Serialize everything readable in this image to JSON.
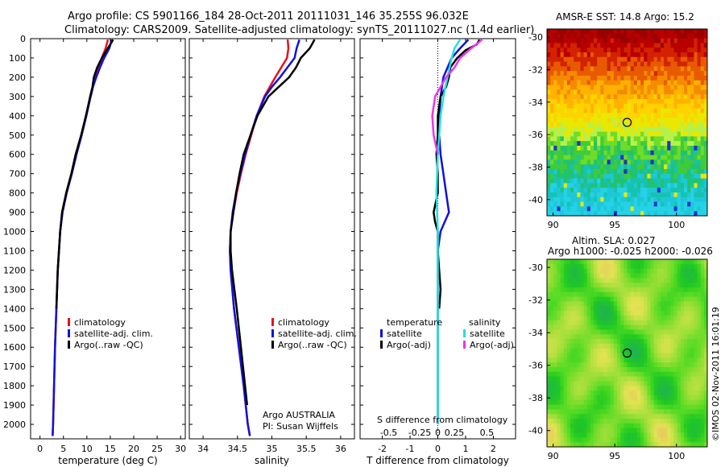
{
  "header": {
    "line1": "Argo profile: CS 5901166_184 28-Oct-2011 20111031_146 35.255S 96.032E",
    "line2": "Climatology: CARS2009. Satellite-adjusted climatology: synTS_20111027.nc (1.4d earlier)"
  },
  "sst_title": "AMSR-E SST: 14.8 Argo: 15.2",
  "sla_title1": "Altim. SLA: 0.027",
  "sla_title2": "Argo h1000: -0.025 h2000: -0.026",
  "watermark": "©IMOS 02-Nov-2011 16:01:19",
  "colors": {
    "climatology": "#e8111a",
    "satellite": "#1111dd",
    "argo": "#000000",
    "sal_satellite": "#22e0e0",
    "sal_argo": "#ee33ee"
  },
  "chart_data": [
    {
      "type": "line",
      "xlabel": "temperature (deg C)",
      "xlim": [
        -2,
        31
      ],
      "xticks": [
        0,
        5,
        10,
        15,
        20,
        25,
        30
      ],
      "ylim": [
        2075,
        0
      ],
      "yticks": [
        0,
        100,
        200,
        300,
        400,
        500,
        600,
        700,
        800,
        900,
        1000,
        1100,
        1200,
        1300,
        1400,
        1500,
        1600,
        1700,
        1800,
        1900,
        2000
      ],
      "legend": [
        "climatology",
        "satellite-adj. clim.",
        "Argo(..raw -QC)"
      ],
      "legend_position": "lower-center",
      "series": [
        {
          "name": "climatology",
          "color": "#e8111a",
          "y": [
            5,
            50,
            100,
            150,
            200,
            250,
            300,
            400,
            500,
            600,
            700,
            800,
            900,
            1000,
            1200,
            1400,
            1600,
            1800,
            2000,
            2060
          ],
          "x": [
            14.5,
            14.0,
            13.2,
            12.5,
            11.9,
            11.3,
            10.8,
            9.8,
            8.8,
            7.7,
            6.7,
            5.6,
            4.8,
            4.3,
            3.8,
            3.5,
            3.2,
            3.0,
            2.8,
            2.7
          ]
        },
        {
          "name": "satellite-adj. clim.",
          "color": "#1111dd",
          "y": [
            5,
            50,
            100,
            150,
            200,
            250,
            300,
            400,
            500,
            600,
            700,
            800,
            900,
            1000,
            1200,
            1400,
            1600,
            1800,
            2000,
            2060
          ],
          "x": [
            15.3,
            14.8,
            13.7,
            12.8,
            12.0,
            11.3,
            10.8,
            9.9,
            8.9,
            7.8,
            6.8,
            5.7,
            4.8,
            4.3,
            3.8,
            3.5,
            3.2,
            3.0,
            2.8,
            2.7
          ]
        },
        {
          "name": "Argo(..raw -QC)",
          "color": "#000000",
          "y": [
            5,
            30,
            60,
            100,
            150,
            200,
            250,
            300,
            400,
            500,
            600,
            700,
            800,
            900,
            1000,
            1200,
            1400
          ],
          "x": [
            15.6,
            15.0,
            14.2,
            13.2,
            12.2,
            11.5,
            11.2,
            10.7,
            9.8,
            8.8,
            7.6,
            6.7,
            5.6,
            4.7,
            4.3,
            3.8,
            3.5
          ]
        }
      ]
    },
    {
      "type": "line",
      "xlabel": "salinity",
      "xlim": [
        33.8,
        36.2
      ],
      "xticks": [
        34,
        34.5,
        35,
        35.5,
        36
      ],
      "ylim": [
        2075,
        0
      ],
      "legend": [
        "climatology",
        "satellite-adj. clim.",
        "Argo(..raw -QC)"
      ],
      "legend_position": "lower-right",
      "annotation": [
        "Argo AUSTRALIA",
        "PI: Susan Wijffels"
      ],
      "series": [
        {
          "name": "climatology",
          "color": "#e8111a",
          "y": [
            5,
            50,
            100,
            200,
            250,
            300,
            400,
            500,
            600,
            700,
            800,
            900,
            1000,
            1100,
            1200,
            1400,
            1600,
            1800,
            2000,
            2060
          ],
          "x": [
            35.23,
            35.24,
            35.22,
            35.05,
            34.97,
            34.89,
            34.78,
            34.7,
            34.62,
            34.55,
            34.49,
            34.44,
            34.4,
            34.39,
            34.4,
            34.45,
            34.52,
            34.59,
            34.65,
            34.68
          ]
        },
        {
          "name": "satellite-adj. clim.",
          "color": "#1111dd",
          "y": [
            5,
            50,
            100,
            200,
            250,
            300,
            400,
            500,
            600,
            700,
            800,
            900,
            1000,
            1100,
            1200,
            1400,
            1600,
            1800,
            2000,
            2060
          ],
          "x": [
            35.4,
            35.36,
            35.33,
            35.12,
            35.0,
            34.9,
            34.78,
            34.69,
            34.61,
            34.54,
            34.48,
            34.43,
            34.4,
            34.39,
            34.4,
            34.45,
            34.52,
            34.59,
            34.65,
            34.68
          ]
        },
        {
          "name": "Argo(..raw -QC)",
          "color": "#000000",
          "y": [
            5,
            50,
            100,
            150,
            200,
            250,
            300,
            400,
            500,
            600,
            700,
            800,
            900,
            1000,
            1100,
            1200,
            1400,
            1600,
            1800,
            1900
          ],
          "x": [
            35.62,
            35.55,
            35.42,
            35.35,
            35.25,
            35.1,
            34.95,
            34.79,
            34.69,
            34.59,
            34.53,
            34.48,
            34.44,
            34.4,
            34.4,
            34.42,
            34.49,
            34.55,
            34.61,
            34.64
          ]
        }
      ]
    },
    {
      "type": "line",
      "xlabel": "T difference from climatology",
      "x2label": "S difference from climatology",
      "xlim": [
        -2.8,
        2.8
      ],
      "xticks": [
        -2,
        -1,
        0,
        1,
        2
      ],
      "x2ticks": [
        "-0.5",
        "-0.25",
        "0",
        "0.25",
        "0.5"
      ],
      "ylim": [
        2075,
        0
      ],
      "legend_temperature_title": "temperature",
      "legend_salinity_title": "salinity",
      "legend": [
        "satellite",
        "Argo(-adj)",
        "satellite",
        "Argo(-adj)"
      ],
      "series": [
        {
          "name": "temperature satellite",
          "color": "#1111dd",
          "y": [
            5,
            50,
            100,
            150,
            200,
            300,
            400,
            500,
            600,
            700,
            800,
            900,
            1000,
            1100,
            1200,
            1400,
            1600,
            1800,
            2000
          ],
          "x": [
            1.1,
            0.8,
            0.5,
            0.35,
            0.2,
            0.1,
            0.05,
            0.05,
            0.1,
            0.2,
            0.3,
            0.4,
            0.1,
            0.0,
            0.0,
            0.0,
            0.0,
            0.0,
            0.0
          ]
        },
        {
          "name": "temperature Argo(-adj)",
          "color": "#000000",
          "y": [
            5,
            30,
            60,
            100,
            150,
            200,
            250,
            300,
            400,
            500,
            600,
            700,
            800,
            900,
            950,
            1000,
            1100,
            1200,
            1300,
            1400
          ],
          "x": [
            1.5,
            1.4,
            1.0,
            0.7,
            0.45,
            0.4,
            0.3,
            0.1,
            0.0,
            0.0,
            -0.05,
            0.0,
            0.0,
            -0.15,
            -0.1,
            0.0,
            0.0,
            0.05,
            0.1,
            0.05
          ]
        },
        {
          "name": "salinity satellite",
          "color": "#22e0e0",
          "y": [
            5,
            50,
            100,
            200,
            300,
            400,
            600,
            800,
            1000,
            1200,
            1400,
            1600,
            1800,
            2000
          ],
          "x": [
            0.8,
            0.6,
            0.5,
            0.35,
            0.2,
            0.1,
            0.0,
            -0.05,
            0.0,
            0.0,
            0.0,
            0.0,
            0.0,
            0.0
          ]
        },
        {
          "name": "salinity Argo(-adj)",
          "color": "#ee33ee",
          "y": [
            5,
            50,
            100,
            150,
            200,
            300,
            400,
            500,
            600
          ],
          "x": [
            1.6,
            1.2,
            0.8,
            0.6,
            0.3,
            -0.1,
            -0.2,
            -0.15,
            0.0
          ]
        }
      ]
    }
  ],
  "sst_map": {
    "xlim": [
      89.5,
      102.5
    ],
    "ylim": [
      -41,
      -29.5
    ],
    "xticks": [
      90,
      95,
      100
    ],
    "yticks": [
      -30,
      -32,
      -34,
      -36,
      -38,
      -40
    ],
    "argo_point": {
      "lon": 96.0,
      "lat": -35.25
    }
  },
  "sla_map": {
    "xlim": [
      89.5,
      102.5
    ],
    "ylim": [
      -41,
      -29.5
    ],
    "xticks": [
      90,
      95,
      100
    ],
    "yticks": [
      -30,
      -32,
      -34,
      -36,
      -38,
      -40
    ],
    "argo_point": {
      "lon": 96.0,
      "lat": -35.25
    }
  }
}
